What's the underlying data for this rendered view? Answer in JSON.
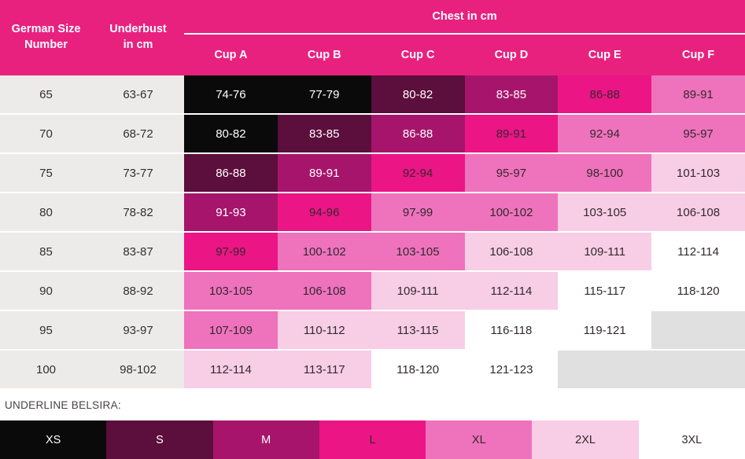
{
  "header": {
    "col1": "German Size\nNumber",
    "col2": "Underbust\nin cm",
    "chest_label": "Chest in cm"
  },
  "footer": {
    "legend_title": "UNDERLINE BELSIRA:"
  },
  "colors": {
    "header_bg": "#E8217F",
    "label_cell_bg": "#ECEBE9",
    "row_divider": "#FFFFFF",
    "dark_text": "#332F30",
    "header_text": "#FFFFFF"
  },
  "bands": {
    "xs": {
      "bg": "#0A0A0A",
      "text": "#FFFFFF"
    },
    "s": {
      "bg": "#5C0E3C",
      "text": "#FFFFFF"
    },
    "m": {
      "bg": "#A6156B",
      "text": "#FFFFFF"
    },
    "l": {
      "bg": "#EB1586",
      "text": "#38262F"
    },
    "xl": {
      "bg": "#EF72BD",
      "text": "#332A2E"
    },
    "2xl": {
      "bg": "#F8CDE6",
      "text": "#332A2E"
    },
    "3xl": {
      "bg": "#FFFFFF",
      "text": "#332A2E"
    },
    "none": {
      "bg": "#E0E0E0",
      "text": ""
    }
  },
  "chart_data": {
    "type": "table",
    "title": "Chest in cm",
    "columns": [
      "German Size Number",
      "Underbust in cm",
      "Cup A",
      "Cup B",
      "Cup C",
      "Cup D",
      "Cup E",
      "Cup F"
    ],
    "rows": [
      [
        "65",
        "63-67",
        "74-76",
        "77-79",
        "80-82",
        "83-85",
        "86-88",
        "89-91"
      ],
      [
        "70",
        "68-72",
        "80-82",
        "83-85",
        "86-88",
        "89-91",
        "92-94",
        "95-97"
      ],
      [
        "75",
        "73-77",
        "86-88",
        "89-91",
        "92-94",
        "95-97",
        "98-100",
        "101-103"
      ],
      [
        "80",
        "78-82",
        "91-93",
        "94-96",
        "97-99",
        "100-102",
        "103-105",
        "106-108"
      ],
      [
        "85",
        "83-87",
        "97-99",
        "100-102",
        "103-105",
        "106-108",
        "109-111",
        "112-114"
      ],
      [
        "90",
        "88-92",
        "103-105",
        "106-108",
        "109-111",
        "112-114",
        "115-117",
        "118-120"
      ],
      [
        "95",
        "93-97",
        "107-109",
        "110-112",
        "113-115",
        "116-118",
        "119-121",
        ""
      ],
      [
        "100",
        "98-102",
        "112-114",
        "113-117",
        "118-120",
        "121-123",
        "",
        ""
      ]
    ],
    "cell_bands": [
      [
        "xs",
        "xs",
        "s",
        "m",
        "l",
        "xl"
      ],
      [
        "xs",
        "s",
        "m",
        "l",
        "xl",
        "xl"
      ],
      [
        "s",
        "m",
        "l",
        "xl",
        "xl",
        "2xl"
      ],
      [
        "m",
        "l",
        "xl",
        "xl",
        "2xl",
        "2xl"
      ],
      [
        "l",
        "xl",
        "xl",
        "2xl",
        "2xl",
        "3xl"
      ],
      [
        "xl",
        "xl",
        "2xl",
        "2xl",
        "3xl",
        "3xl"
      ],
      [
        "xl",
        "2xl",
        "2xl",
        "3xl",
        "3xl",
        "none"
      ],
      [
        "2xl",
        "2xl",
        "3xl",
        "3xl",
        "none",
        "none"
      ]
    ],
    "legend": [
      {
        "label": "XS",
        "band": "xs",
        "color": "#0A0A0A"
      },
      {
        "label": "S",
        "band": "s",
        "color": "#5C0E3C"
      },
      {
        "label": "M",
        "band": "m",
        "color": "#A6156B"
      },
      {
        "label": "L",
        "band": "l",
        "color": "#EB1586"
      },
      {
        "label": "XL",
        "band": "xl",
        "color": "#EF72BD"
      },
      {
        "label": "2XL",
        "band": "2xl",
        "color": "#F8CDE6"
      },
      {
        "label": "3XL",
        "band": "3xl",
        "color": "#FFFFFF"
      }
    ],
    "legend_position": "bottom",
    "notes": "Color bands run diagonally; empty gray cells mean no size available."
  }
}
